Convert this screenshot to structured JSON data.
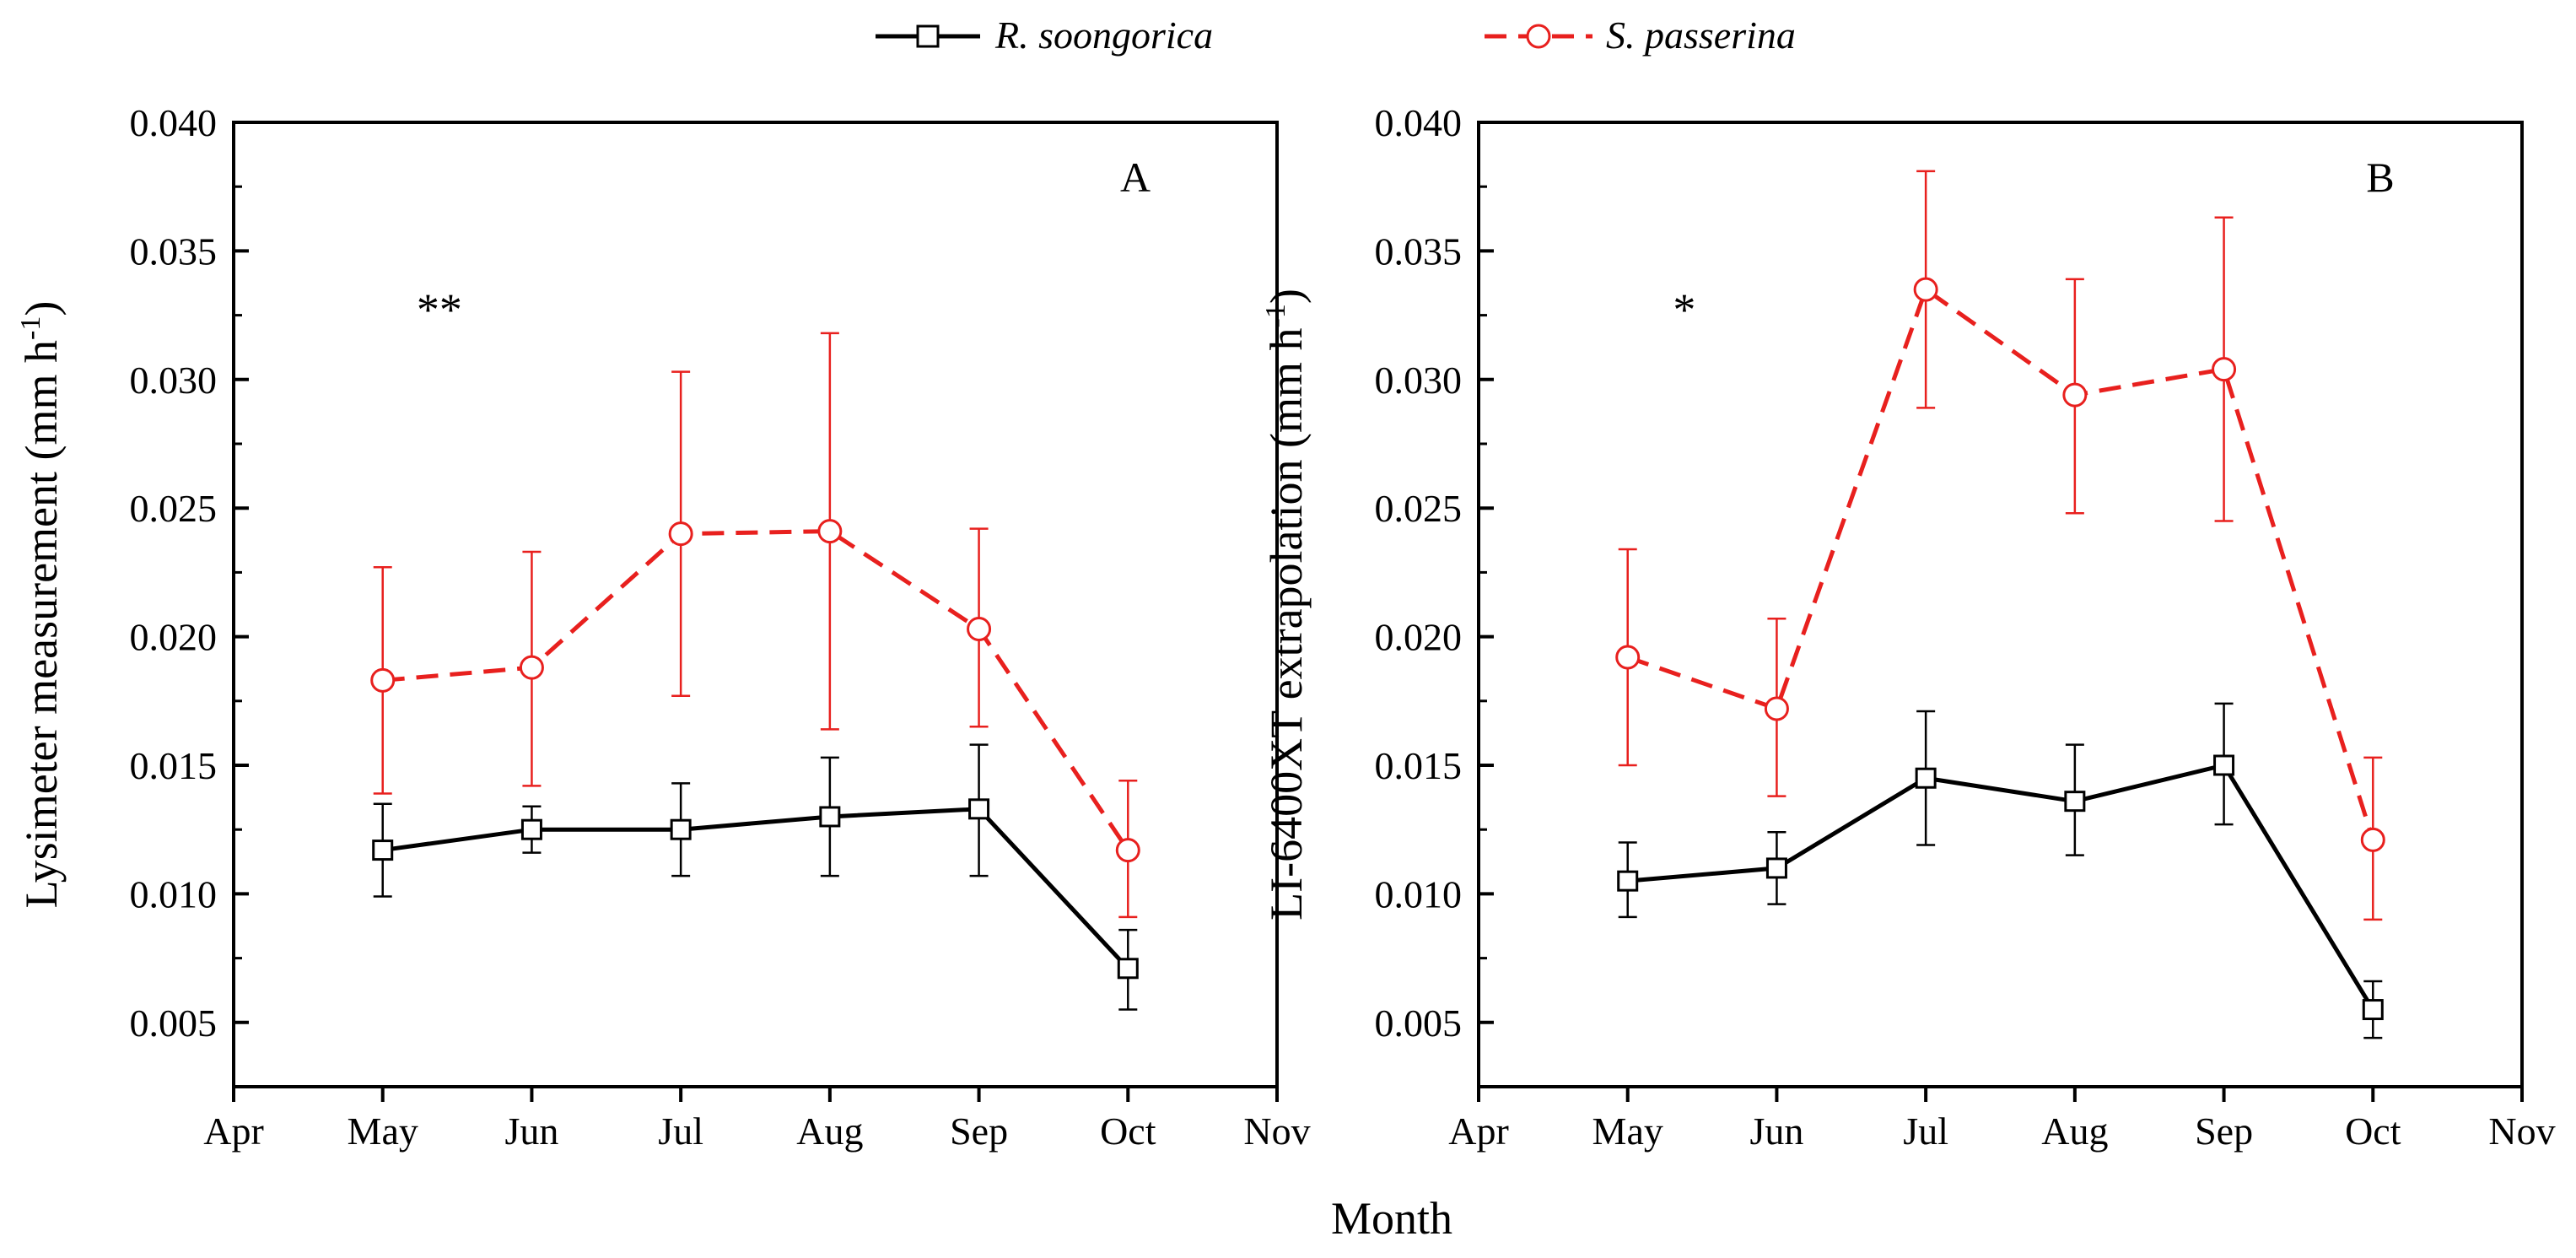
{
  "legend": {
    "series": [
      {
        "name": "R. soongorica",
        "color": "#000000",
        "marker": "square",
        "dash": "solid"
      },
      {
        "name": "S. passerina",
        "color": "#e8201e",
        "marker": "circle",
        "dash": "dashed"
      }
    ]
  },
  "shared_xlabel": "Month",
  "chart_data": [
    {
      "type": "line",
      "panel_label": "A",
      "title": "",
      "xlabel": "",
      "ylabel": "Lysimeter measurement (mm h",
      "ylabel_sup": "-1",
      "ylabel_close": ")",
      "annotation": "**",
      "categories": [
        "Apr",
        "May",
        "Jun",
        "Jul",
        "Aug",
        "Sep",
        "Oct",
        "Nov"
      ],
      "yticks": [
        "0.005",
        "0.010",
        "0.015",
        "0.020",
        "0.025",
        "0.030",
        "0.035",
        "0.040"
      ],
      "ylim": [
        0.0025,
        0.04
      ],
      "series": [
        {
          "name": "R. soongorica",
          "x": [
            "May",
            "Jun",
            "Jul",
            "Aug",
            "Sep",
            "Oct"
          ],
          "values": [
            0.0117,
            0.0125,
            0.0125,
            0.013,
            0.0133,
            0.0071
          ],
          "err_low": [
            0.0099,
            0.0116,
            0.0107,
            0.0107,
            0.0107,
            0.0055
          ],
          "err_high": [
            0.0135,
            0.0134,
            0.0143,
            0.0153,
            0.0158,
            0.0086
          ]
        },
        {
          "name": "S. passerina",
          "x": [
            "May",
            "Jun",
            "Jul",
            "Aug",
            "Sep",
            "Oct"
          ],
          "values": [
            0.0183,
            0.0188,
            0.024,
            0.0241,
            0.0203,
            0.0117
          ],
          "err_low": [
            0.0139,
            0.0142,
            0.0177,
            0.0164,
            0.0165,
            0.0091
          ],
          "err_high": [
            0.0227,
            0.0233,
            0.0303,
            0.0318,
            0.0242,
            0.0144
          ]
        }
      ]
    },
    {
      "type": "line",
      "panel_label": "B",
      "title": "",
      "xlabel": "",
      "ylabel": "LI-6400XT extrapolation (mm h",
      "ylabel_sup": "-1",
      "ylabel_close": ")",
      "annotation": "*",
      "categories": [
        "Apr",
        "May",
        "Jun",
        "Jul",
        "Aug",
        "Sep",
        "Oct",
        "Nov"
      ],
      "yticks": [
        "0.005",
        "0.010",
        "0.015",
        "0.020",
        "0.025",
        "0.030",
        "0.035",
        "0.040"
      ],
      "ylim": [
        0.0025,
        0.04
      ],
      "series": [
        {
          "name": "R. soongorica",
          "x": [
            "May",
            "Jun",
            "Jul",
            "Aug",
            "Sep",
            "Oct"
          ],
          "values": [
            0.0105,
            0.011,
            0.0145,
            0.0136,
            0.015,
            0.0055
          ],
          "err_low": [
            0.0091,
            0.0096,
            0.0119,
            0.0115,
            0.0127,
            0.0044
          ],
          "err_high": [
            0.012,
            0.0124,
            0.0171,
            0.0158,
            0.0174,
            0.0066
          ]
        },
        {
          "name": "S. passerina",
          "x": [
            "May",
            "Jun",
            "Jul",
            "Aug",
            "Sep",
            "Oct"
          ],
          "values": [
            0.0192,
            0.0172,
            0.0335,
            0.0294,
            0.0304,
            0.0121
          ],
          "err_low": [
            0.015,
            0.0138,
            0.0289,
            0.0248,
            0.0245,
            0.009
          ],
          "err_high": [
            0.0234,
            0.0207,
            0.0381,
            0.0339,
            0.0363,
            0.0153
          ]
        }
      ]
    }
  ]
}
